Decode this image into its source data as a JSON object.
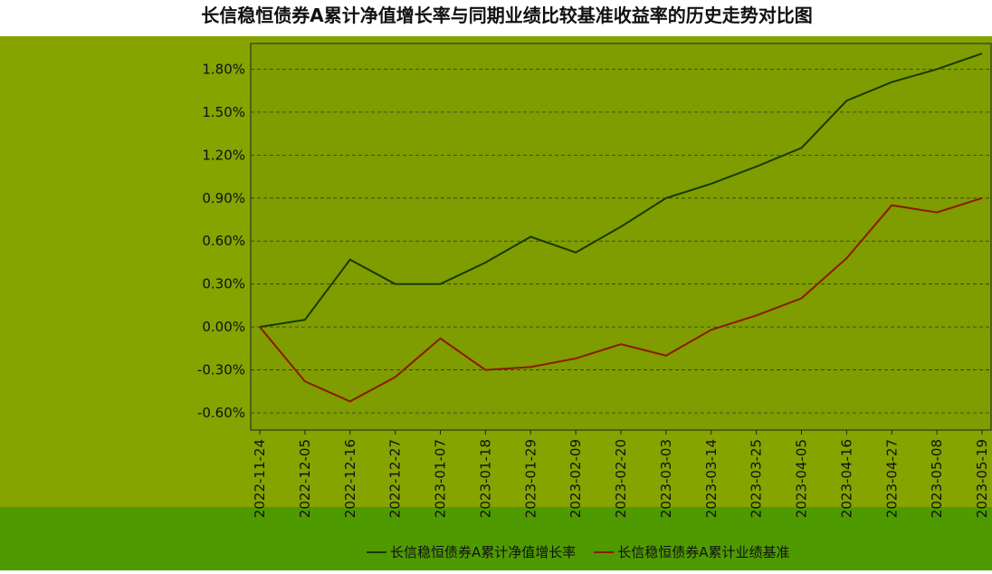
{
  "chart_data": {
    "type": "line",
    "title": "长信稳恒债券A累计净值增长率与同期业绩比较基准收益率的历史走势对比图",
    "categories": [
      "2022-11-24",
      "2022-12-05",
      "2022-12-16",
      "2022-12-27",
      "2023-01-07",
      "2023-01-18",
      "2023-01-29",
      "2023-02-09",
      "2023-02-20",
      "2023-03-03",
      "2023-03-14",
      "2023-03-25",
      "2023-04-05",
      "2023-04-16",
      "2023-04-27",
      "2023-05-08",
      "2023-05-19"
    ],
    "series": [
      {
        "name": "长信稳恒债券A累计净值增长率",
        "color": "#173a00",
        "values": [
          0.0,
          0.05,
          0.47,
          0.3,
          0.3,
          0.45,
          0.63,
          0.52,
          0.7,
          0.9,
          1.0,
          1.12,
          1.25,
          1.58,
          1.71,
          1.8,
          1.91
        ]
      },
      {
        "name": "长信稳恒债券A累计业绩基准",
        "color": "#8b1a00",
        "values": [
          0.0,
          -0.38,
          -0.52,
          -0.35,
          -0.08,
          -0.3,
          -0.28,
          -0.22,
          -0.12,
          -0.2,
          -0.02,
          0.08,
          0.2,
          0.48,
          0.85,
          0.8,
          0.9
        ]
      }
    ],
    "ylim": [
      -0.72,
      1.98
    ],
    "yticks": [
      {
        "value": -0.6,
        "label": "-0.60%"
      },
      {
        "value": -0.3,
        "label": "-0.30%"
      },
      {
        "value": 0,
        "label": "0.00%"
      },
      {
        "value": 0.3,
        "label": "0.30%"
      },
      {
        "value": 0.6,
        "label": "0.60%"
      },
      {
        "value": 0.9,
        "label": "0.90%"
      },
      {
        "value": 1.2,
        "label": "1.20%"
      },
      {
        "value": 1.5,
        "label": "1.50%"
      },
      {
        "value": 1.8,
        "label": "1.80%"
      }
    ],
    "grid": true
  }
}
